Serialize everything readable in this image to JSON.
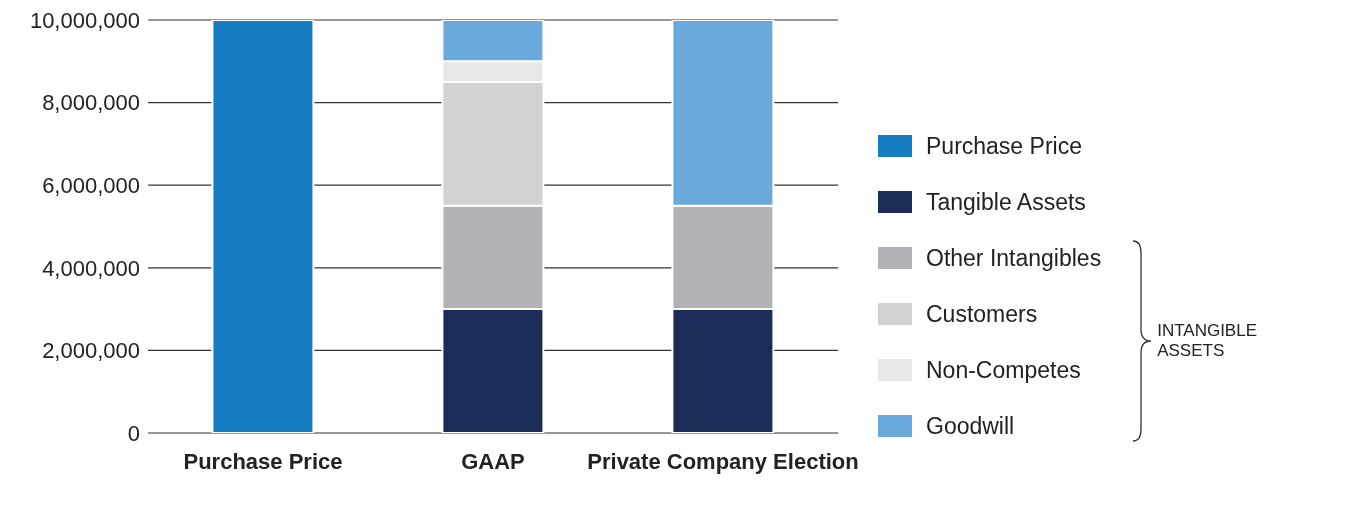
{
  "chart_data": {
    "type": "bar",
    "stacked": true,
    "categories": [
      "Purchase Price",
      "GAAP",
      "Private Company Election"
    ],
    "series": [
      {
        "name": "Purchase Price",
        "color": "#177dc3",
        "values": [
          10000000,
          null,
          null
        ]
      },
      {
        "name": "Tangible Assets",
        "color": "#1b2c58",
        "values": [
          null,
          3000000,
          3000000
        ]
      },
      {
        "name": "Other Intangibles",
        "color": "#b1b2b5",
        "values": [
          null,
          2500000,
          2500000
        ]
      },
      {
        "name": "Customers",
        "color": "#d1d2d4",
        "values": [
          null,
          3000000,
          null
        ]
      },
      {
        "name": "Non-Competes",
        "color": "#e6e7e8",
        "values": [
          null,
          500000,
          null
        ]
      },
      {
        "name": "Goodwill",
        "color": "#6aa9db",
        "values": [
          null,
          1000000,
          4500000
        ]
      }
    ],
    "ylim": [
      0,
      10000000
    ],
    "yticks": [
      0,
      {
        "value": 2000000,
        "label": "2,000,000"
      },
      {
        "value": 4000000,
        "label": "4,000,000"
      },
      {
        "value": 6000000,
        "label": "6,000,000"
      },
      {
        "value": 8000000,
        "label": "8,000,000"
      },
      {
        "value": 10000000,
        "label": "10,000,000"
      }
    ],
    "grid": "y",
    "legend": "right",
    "annotations": [
      "INTANGIBLE ASSETS"
    ]
  }
}
